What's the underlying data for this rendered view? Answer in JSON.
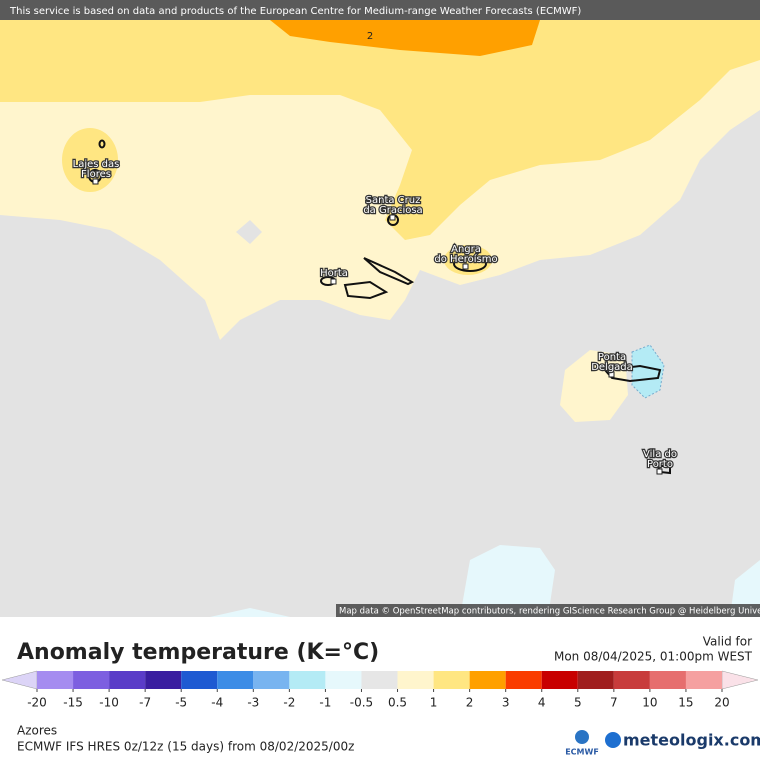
{
  "banner": "This service is based on data and products of the European Centre for Medium-range Weather Forecasts (ECMWF)",
  "map": {
    "contour_label": "2",
    "places": [
      {
        "lines": [
          "Lajes das",
          "Flores"
        ]
      },
      {
        "lines": [
          "Santa Cruz",
          "da Graciosa"
        ]
      },
      {
        "lines": [
          "Angra",
          "do Heroísmo"
        ]
      },
      {
        "lines": [
          "Horta"
        ]
      },
      {
        "lines": [
          "Ponta",
          "Delgada"
        ]
      },
      {
        "lines": [
          "Vila do",
          "Porto"
        ]
      }
    ],
    "attribution": "Map data © OpenStreetMap contributors, rendering GIScience Research Group @ Heidelberg University"
  },
  "legend": {
    "title": "Anomaly temperature (K=°C)",
    "valid_label": "Valid for",
    "valid_time": "Mon 08/04/2025, 01:00pm WEST",
    "ticks": [
      -20,
      -15,
      -10,
      -7,
      -5,
      -4,
      -3,
      -2,
      -1,
      -0.5,
      0.5,
      1,
      2,
      3,
      4,
      5,
      7,
      10,
      15,
      20
    ],
    "colors": [
      "#a58cf0",
      "#7d5fe0",
      "#5a3cc8",
      "#3a1ea0",
      "#1e5ad2",
      "#3c8ce6",
      "#78b4f0",
      "#b4ebf5",
      "#e6f8fc",
      "#e6e6e6",
      "#fff5cd",
      "#ffe682",
      "#ffa000",
      "#fa3c00",
      "#c80000",
      "#a01e1e",
      "#c83c3c",
      "#e66e6e",
      "#f5a0a0"
    ],
    "under_color": "#dcd4f7",
    "over_color": "#fae1e8"
  },
  "footer": {
    "region": "Azores",
    "model": "ECMWF IFS HRES 0z/12z (15 days) from  08/02/2025/00z",
    "ecmwf_logo": "ECMWF",
    "brand": "meteologix.com"
  }
}
